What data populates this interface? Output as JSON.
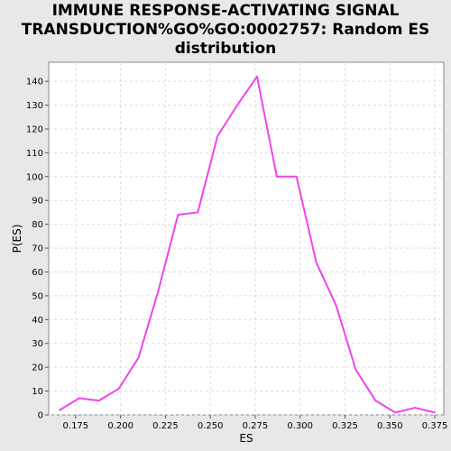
{
  "chart_data": {
    "type": "line",
    "title_lines": [
      "IMMUNE RESPONSE-ACTIVATING SIGNAL",
      "TRANSDUCTION%GO%GO:0002757: Random ES",
      "distribution"
    ],
    "xlabel": "ES",
    "ylabel": "P(ES)",
    "xlim": [
      0.16,
      0.38
    ],
    "ylim": [
      0,
      148
    ],
    "xticks": [
      "0.175",
      "0.200",
      "0.225",
      "0.250",
      "0.275",
      "0.300",
      "0.325",
      "0.350",
      "0.375"
    ],
    "yticks": [
      "0",
      "10",
      "20",
      "30",
      "40",
      "50",
      "60",
      "70",
      "80",
      "90",
      "100",
      "110",
      "120",
      "130",
      "140"
    ],
    "grid": true,
    "series": [
      {
        "color": "#ee44ee",
        "x": [
          0.166,
          0.177,
          0.188,
          0.199,
          0.21,
          0.221,
          0.232,
          0.243,
          0.254,
          0.265,
          0.276,
          0.287,
          0.298,
          0.309,
          0.32,
          0.331,
          0.342,
          0.353,
          0.364,
          0.375
        ],
        "y": [
          2,
          7,
          6,
          11,
          24,
          52,
          84,
          85,
          117,
          130,
          142,
          100,
          100,
          64,
          46,
          19,
          6,
          1,
          3,
          1
        ]
      }
    ]
  }
}
